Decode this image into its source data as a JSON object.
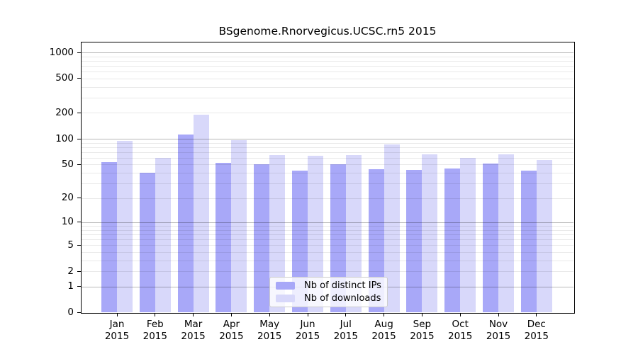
{
  "chart_data": {
    "type": "bar",
    "title": "BSgenome.Rnorvegicus.UCSC.rn5 2015",
    "categories": [
      "Jan",
      "Feb",
      "Mar",
      "Apr",
      "May",
      "Jun",
      "Jul",
      "Aug",
      "Sep",
      "Oct",
      "Nov",
      "Dec"
    ],
    "year_label": "2015",
    "series": [
      {
        "name": "Nb of distinct IPs",
        "color": "#a8a8f8",
        "values": [
          53,
          40,
          112,
          52,
          50,
          42,
          50,
          44,
          43,
          45,
          51,
          42
        ]
      },
      {
        "name": "Nb of downloads",
        "color": "#d8d8fa",
        "values": [
          94,
          60,
          190,
          96,
          65,
          63,
          64,
          86,
          66,
          60,
          66,
          56
        ]
      }
    ],
    "y_ticks": [
      0,
      1,
      2,
      5,
      10,
      20,
      50,
      100,
      200,
      500,
      1000
    ],
    "y_scale": "log1p",
    "ylim": [
      0,
      1200
    ],
    "grid": "both",
    "legend_position": "lower-center",
    "colors": {
      "axis": "#000000",
      "major_grid": "#b8b8b8",
      "minor_grid": "#e8e8e8",
      "background": "#ffffff"
    }
  }
}
